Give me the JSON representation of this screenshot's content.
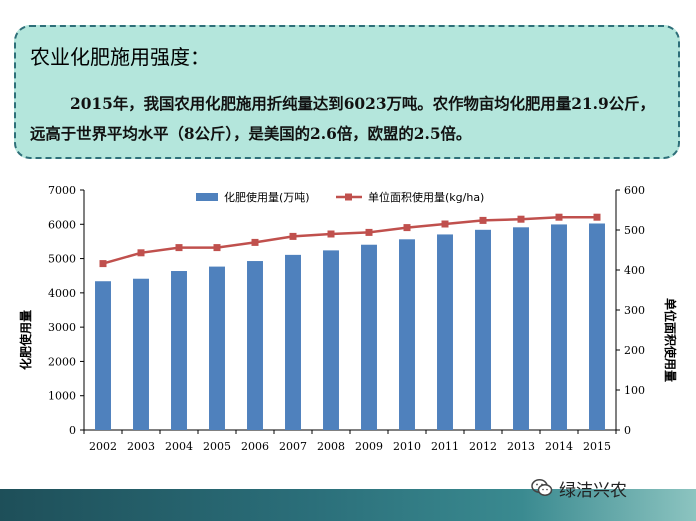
{
  "callout": {
    "title": "农业化肥施用强度：",
    "body": "2015年，我国农用化肥施用折纯量达到6023万吨。农作物亩均化肥用量21.9公斤，远高于世界平均水平（8公斤），是美国的2.6倍，欧盟的2.5倍。"
  },
  "watermark": {
    "text": "绿洁兴农",
    "icon": "wechat-icon"
  },
  "colors": {
    "bar": "#4f81bd",
    "line": "#c0504d",
    "callout_bg": "#b4e6dc",
    "callout_border": "#2e6f79",
    "footer": "#2b6f7a"
  },
  "chart_data": {
    "type": "bar",
    "categories": [
      "2002",
      "2003",
      "2004",
      "2005",
      "2006",
      "2007",
      "2008",
      "2009",
      "2010",
      "2011",
      "2012",
      "2013",
      "2014",
      "2015"
    ],
    "series": [
      {
        "name": "化肥使用量(万吨)",
        "type": "bar",
        "axis": "left",
        "values": [
          4339,
          4412,
          4637,
          4766,
          4928,
          5108,
          5239,
          5404,
          5562,
          5704,
          5839,
          5912,
          5996,
          6023
        ]
      },
      {
        "name": "单位面积使用量(kg/ha)",
        "type": "line",
        "axis": "right",
        "values": [
          416,
          443,
          456,
          456,
          469,
          484,
          490,
          494,
          506,
          515,
          524,
          527,
          532,
          532
        ]
      }
    ],
    "y_left": {
      "label": "化肥使用量",
      "min": 0,
      "max": 7000,
      "ticks": [
        0,
        1000,
        2000,
        3000,
        4000,
        5000,
        6000,
        7000
      ]
    },
    "y_right": {
      "label": "单位面积使用量",
      "min": 0,
      "max": 600,
      "ticks": [
        0,
        100,
        200,
        300,
        400,
        500,
        600
      ]
    },
    "legend_position": "top",
    "grid": false
  }
}
